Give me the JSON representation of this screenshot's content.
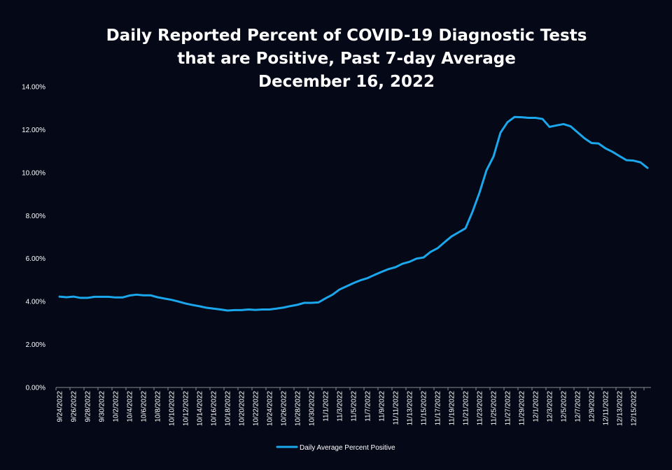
{
  "chart_data": {
    "type": "line",
    "title_lines": [
      "Daily Reported Percent of COVID-19 Diagnostic Tests",
      "that are Positive, Past 7-day Average",
      "December 16, 2022"
    ],
    "xlabel": "",
    "ylabel": "",
    "ylim": [
      0,
      14
    ],
    "y_ticks": [
      "0.00%",
      "2.00%",
      "4.00%",
      "6.00%",
      "8.00%",
      "10.00%",
      "12.00%",
      "14.00%"
    ],
    "x_tick_labels": [
      "9/24/2022",
      "9/26/2022",
      "9/28/2022",
      "9/30/2022",
      "10/2/2022",
      "10/4/2022",
      "10/6/2022",
      "10/8/2022",
      "10/10/2022",
      "10/12/2022",
      "10/14/2022",
      "10/16/2022",
      "10/18/2022",
      "10/20/2022",
      "10/22/2022",
      "10/24/2022",
      "10/26/2022",
      "10/28/2022",
      "10/30/2022",
      "11/1/2022",
      "11/3/2022",
      "11/5/2022",
      "11/7/2022",
      "11/9/2022",
      "11/11/2022",
      "11/13/2022",
      "11/15/2022",
      "11/17/2022",
      "11/19/2022",
      "11/21/2022",
      "11/23/2022",
      "11/25/2022",
      "11/27/2022",
      "11/29/2022",
      "12/1/2022",
      "12/3/2022",
      "12/5/2022",
      "12/7/2022",
      "12/9/2022",
      "12/11/2022",
      "12/13/2022",
      "12/15/2022"
    ],
    "grid": false,
    "legend_position": "bottom",
    "line_color": "#1AA7EC",
    "series": [
      {
        "name": "Daily Average Percent Positive",
        "values": [
          4.23,
          4.2,
          4.23,
          4.17,
          4.17,
          4.22,
          4.22,
          4.22,
          4.19,
          4.19,
          4.28,
          4.32,
          4.29,
          4.29,
          4.2,
          4.14,
          4.08,
          4.0,
          3.91,
          3.84,
          3.78,
          3.71,
          3.67,
          3.63,
          3.58,
          3.6,
          3.6,
          3.63,
          3.61,
          3.63,
          3.63,
          3.67,
          3.72,
          3.79,
          3.85,
          3.94,
          3.94,
          3.96,
          4.15,
          4.32,
          4.56,
          4.71,
          4.86,
          4.99,
          5.09,
          5.24,
          5.38,
          5.51,
          5.6,
          5.76,
          5.85,
          6.0,
          6.05,
          6.31,
          6.48,
          6.76,
          7.03,
          7.22,
          7.41,
          8.18,
          9.07,
          10.11,
          10.75,
          11.86,
          12.35,
          12.59,
          12.58,
          12.55,
          12.55,
          12.5,
          12.13,
          12.2,
          12.26,
          12.16,
          11.88,
          11.6,
          11.38,
          11.36,
          11.13,
          10.97,
          10.77,
          10.58,
          10.56,
          10.48,
          10.22
        ]
      }
    ]
  }
}
